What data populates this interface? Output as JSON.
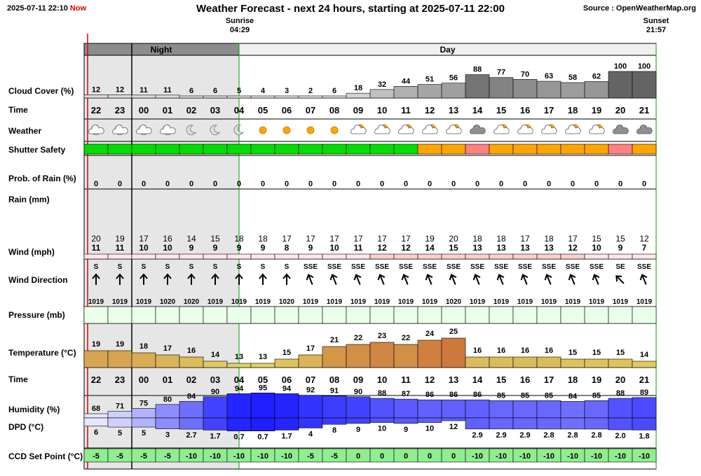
{
  "header": {
    "datetime": "2025-07-11 22:10",
    "now_label": "Now",
    "title": "Weather Forecast - next 24 hours, starting at 2025-07-11 22:00",
    "source": "Source : OpenWeatherMap.org"
  },
  "sun": {
    "sunrise_label": "Sunrise",
    "sunrise_time": "04:29",
    "sunset_label": "Sunset",
    "sunset_time": "21:57"
  },
  "bands": {
    "night": "Night",
    "day": "Day"
  },
  "row_labels": {
    "cloud": "Cloud Cover (%)",
    "time": "Time",
    "weather": "Weather",
    "shutter": "Shutter Safety",
    "rain_prob": "Prob. of Rain (%)",
    "rain": "Rain (mm)",
    "wind": "Wind (mph)",
    "wind_dir": "Wind Direction",
    "pressure": "Pressure (mb)",
    "temperature": "Temperature (°C)",
    "time2": "Time",
    "humidity": "Humidity (%)",
    "dpd": "DPD (°C)",
    "ccd": "CCD Set Point (°C)"
  },
  "colors": {
    "night_shade": "#e6e6e6",
    "band_night": "#8c8c8c",
    "band_day": "#f0f0f0",
    "shutter_safe": "#00dd00",
    "shutter_caution": "#ffa500",
    "shutter_unsafe": "#ff8080",
    "ccd_green": "#90ee90",
    "now_line": "#e00000",
    "sunrise_line": "#00a000"
  },
  "chart_data": {
    "type": "table",
    "hours": [
      "22",
      "23",
      "00",
      "01",
      "02",
      "03",
      "04",
      "05",
      "06",
      "07",
      "08",
      "09",
      "10",
      "11",
      "12",
      "13",
      "14",
      "15",
      "16",
      "17",
      "18",
      "19",
      "20",
      "21"
    ],
    "cloud_cover": [
      12,
      12,
      11,
      11,
      6,
      6,
      5,
      4,
      3,
      2,
      6,
      18,
      32,
      44,
      51,
      56,
      88,
      77,
      70,
      63,
      58,
      62,
      100,
      100
    ],
    "weather_icons": [
      "moon-cloud",
      "moon-cloud",
      "moon-cloud",
      "moon-cloud",
      "moon",
      "moon",
      "moon",
      "sun",
      "sun",
      "sun",
      "sun",
      "sun-cloud",
      "sun-cloud",
      "sun-cloud",
      "sun-cloud",
      "sun-cloud",
      "cloud-dark",
      "sun-cloud",
      "sun-cloud",
      "sun-cloud",
      "sun-cloud",
      "sun-cloud",
      "cloud-dark",
      "cloud-dark"
    ],
    "shutter_safety": [
      "safe",
      "safe",
      "safe",
      "safe",
      "safe",
      "safe",
      "safe",
      "safe",
      "safe",
      "safe",
      "safe",
      "safe",
      "safe",
      "safe",
      "caution",
      "caution",
      "unsafe",
      "caution",
      "caution",
      "caution",
      "caution",
      "caution",
      "unsafe",
      "caution"
    ],
    "rain_probability": [
      0,
      0,
      0,
      0,
      0,
      0,
      0,
      0,
      0,
      0,
      0,
      0,
      0,
      0,
      0,
      0,
      0,
      0,
      0,
      0,
      0,
      0,
      0,
      0
    ],
    "wind_gust": [
      20,
      19,
      17,
      16,
      14,
      15,
      18,
      18,
      17,
      17,
      17,
      17,
      17,
      17,
      19,
      20,
      18,
      18,
      17,
      18,
      17,
      15,
      15,
      12
    ],
    "wind_speed": [
      11,
      11,
      10,
      10,
      9,
      9,
      9,
      9,
      8,
      9,
      10,
      11,
      12,
      12,
      14,
      15,
      13,
      13,
      13,
      13,
      12,
      10,
      9,
      7
    ],
    "wind_direction": [
      "S",
      "S",
      "S",
      "S",
      "S",
      "S",
      "S",
      "S",
      "S",
      "SSE",
      "SSE",
      "SSE",
      "SSE",
      "SSE",
      "SSE",
      "SSE",
      "SSE",
      "SSE",
      "SSE",
      "SSE",
      "SSE",
      "SSE",
      "SE",
      "SSE"
    ],
    "wind_bearing_deg": [
      180,
      180,
      180,
      180,
      180,
      180,
      180,
      180,
      180,
      158,
      158,
      158,
      158,
      158,
      158,
      158,
      158,
      158,
      158,
      158,
      158,
      158,
      135,
      158
    ],
    "pressure": [
      1019,
      1019,
      1019,
      1020,
      1020,
      1019,
      1019,
      1019,
      1020,
      1019,
      1019,
      1019,
      1019,
      1019,
      1019,
      1020,
      1019,
      1019,
      1019,
      1019,
      1019,
      1019,
      1019,
      1019
    ],
    "temperature": [
      19,
      19,
      18,
      17,
      16,
      14,
      13,
      13,
      15,
      17,
      21,
      22,
      23,
      22,
      24,
      25,
      16,
      16,
      16,
      16,
      15,
      15,
      15,
      14
    ],
    "humidity": [
      68,
      71,
      75,
      80,
      84,
      90,
      94,
      95,
      94,
      92,
      91,
      90,
      88,
      87,
      86,
      86,
      86,
      85,
      85,
      85,
      84,
      85,
      88,
      89
    ],
    "dew_point_depression": [
      "6",
      "5",
      "5",
      "3",
      "2.7",
      "1.7",
      "0.7",
      "0.7",
      "1.7",
      "4",
      "8",
      "9",
      "10",
      "9",
      "10",
      "12",
      "2.9",
      "2.9",
      "2.9",
      "2.8",
      "2.8",
      "2.8",
      "2.0",
      "1.8"
    ],
    "ccd_set_point": [
      -5,
      -5,
      -5,
      -5,
      -10,
      -10,
      -10,
      -10,
      -10,
      -5,
      -5,
      0,
      0,
      0,
      0,
      0,
      -10,
      -10,
      -10,
      -10,
      -10,
      -10,
      -10,
      -10
    ]
  }
}
